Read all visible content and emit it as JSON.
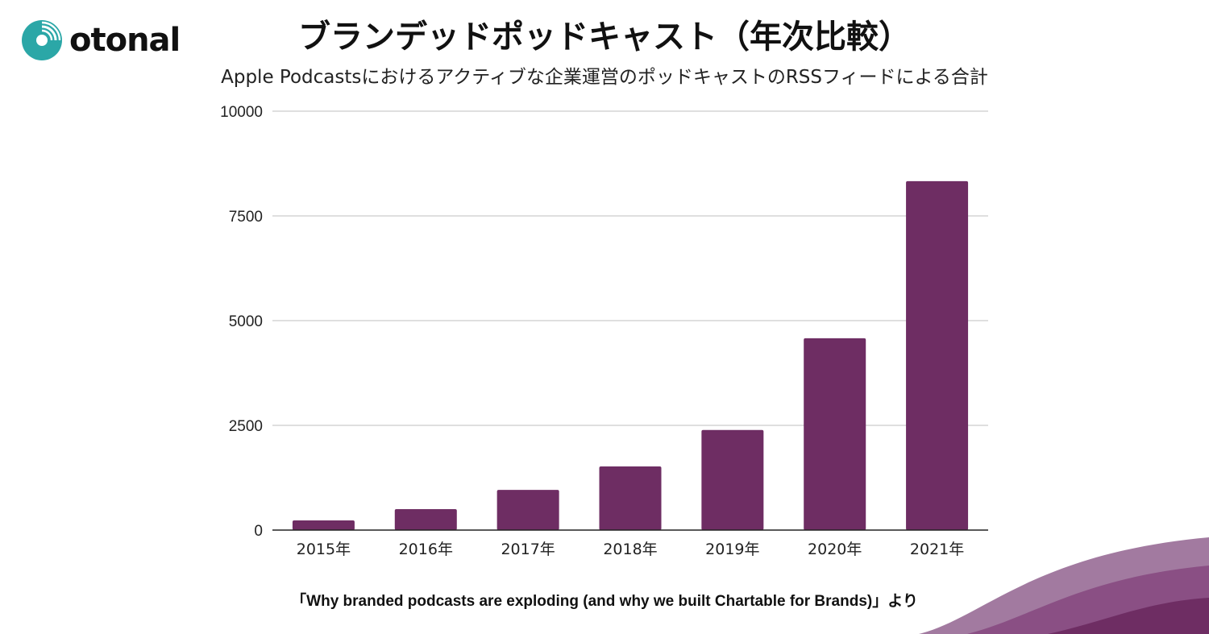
{
  "brand": {
    "name": "otonal",
    "color": "#2ba7a7"
  },
  "chart_data": {
    "type": "bar",
    "title": "ブランデッドポッドキャスト（年次比較）",
    "subtitle": "Apple Podcastsにおけるアクティブな企業運営のポッドキャストのRSSフィードによる合計",
    "categories": [
      "2015年",
      "2016年",
      "2017年",
      "2018年",
      "2019年",
      "2020年",
      "2021年"
    ],
    "values": [
      230,
      500,
      960,
      1520,
      2390,
      4580,
      8330
    ],
    "ylim": [
      0,
      10000
    ],
    "yticks": [
      "0",
      "2500",
      "5000",
      "7500",
      "10000"
    ],
    "ytick_values": [
      0,
      2500,
      5000,
      7500,
      10000
    ],
    "xlabel": "",
    "ylabel": "",
    "grid": true,
    "bar_color": "#6e2d63"
  },
  "source_note": "「Why branded podcasts are exploding (and why we built Chartable for Brands)」より",
  "decor": {
    "wave_colors": [
      "#a27aa0",
      "#8a4f84",
      "#6e2d63"
    ]
  }
}
